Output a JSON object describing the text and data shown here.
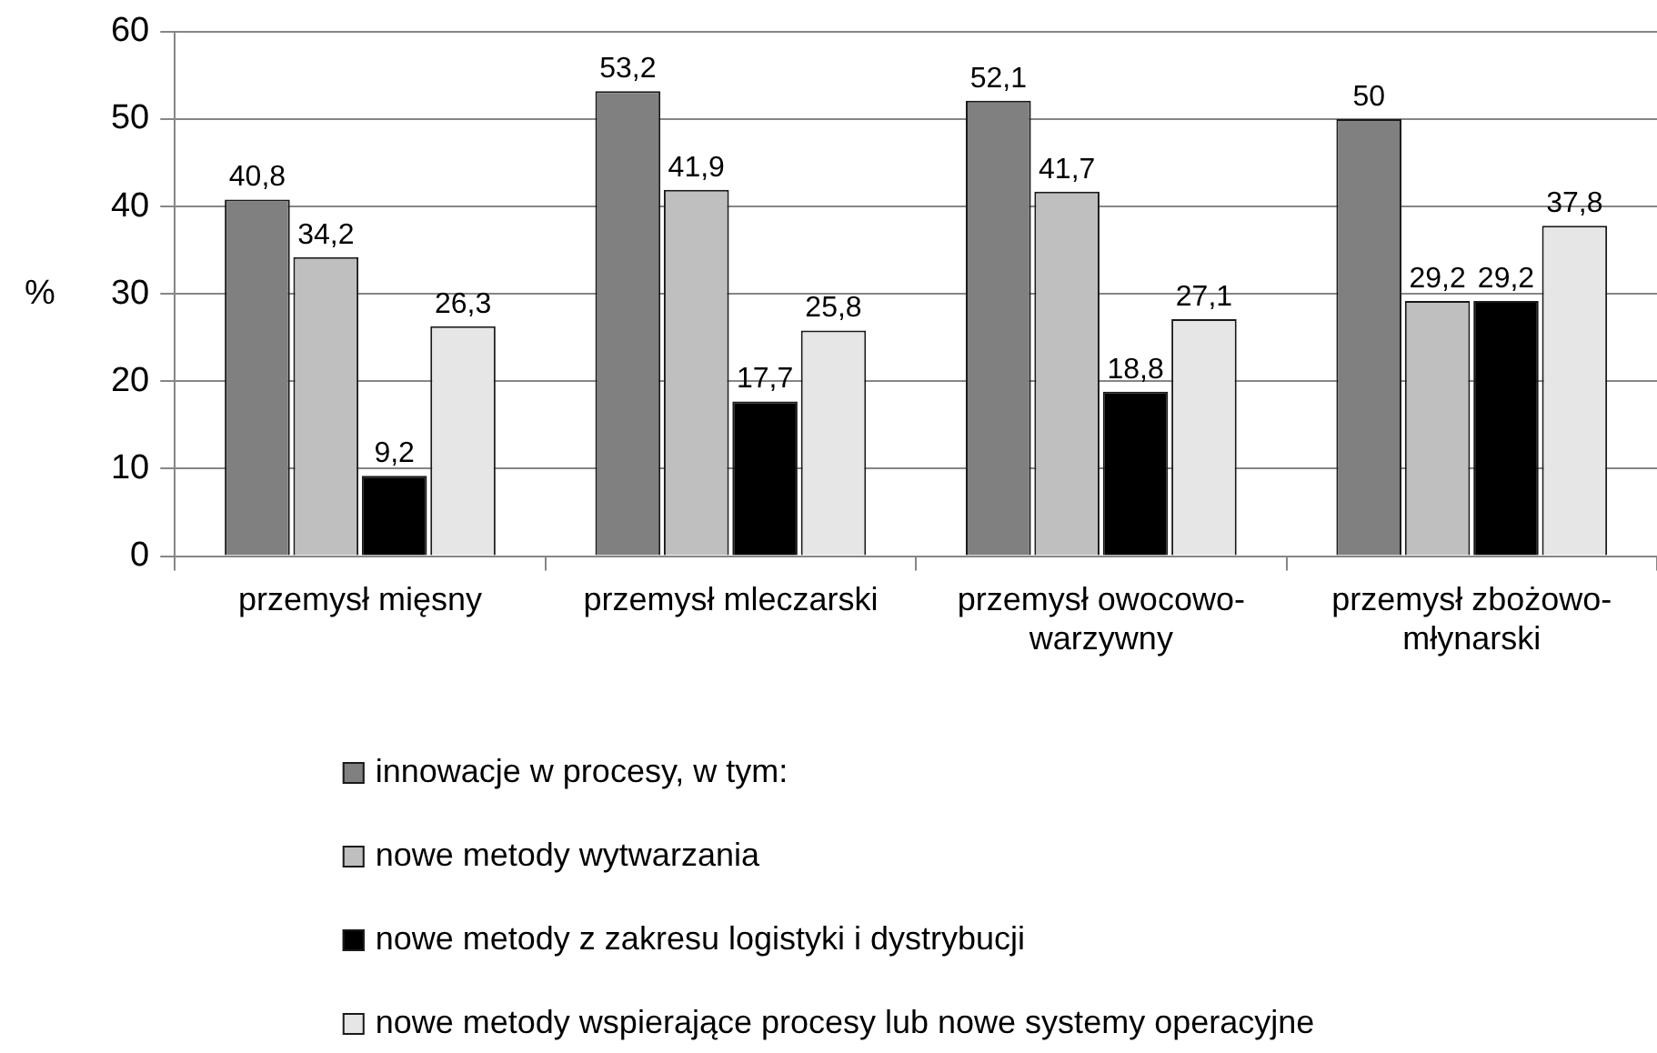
{
  "chart_data": {
    "type": "bar",
    "categories": [
      "przemysł mięsny",
      "przemysł mleczarski",
      "przemysł owocowo-warzywny",
      "przemysł zbożowo-młynarski"
    ],
    "series": [
      {
        "name": "innowacje w procesy, w tym:",
        "color": "#808080",
        "values": [
          40.8,
          53.2,
          52.1,
          50
        ],
        "value_labels": [
          "40,8",
          "53,2",
          "52,1",
          "50"
        ]
      },
      {
        "name": "nowe metody wytwarzania",
        "color": "#bfbfbf",
        "values": [
          34.2,
          41.9,
          41.7,
          29.2
        ],
        "value_labels": [
          "34,2",
          "41,9",
          "41,7",
          "29,2"
        ]
      },
      {
        "name": "nowe metody z zakresu logistyki i dystrybucji",
        "color": "#000000",
        "values": [
          9.2,
          17.7,
          18.8,
          29.2
        ],
        "value_labels": [
          "9,2",
          "17,7",
          "18,8",
          "29,2"
        ]
      },
      {
        "name": "nowe metody wspierające procesy lub nowe systemy operacyjne",
        "color": "#e6e6e6",
        "values": [
          26.3,
          25.8,
          27.1,
          37.8
        ],
        "value_labels": [
          "26,3",
          "25,8",
          "27,1",
          "37,8"
        ]
      }
    ],
    "ylabel": "%",
    "ylim": [
      0,
      60
    ],
    "yticks": [
      0,
      10,
      20,
      30,
      40,
      50,
      60
    ],
    "grid": "y",
    "legend": "bottom"
  }
}
